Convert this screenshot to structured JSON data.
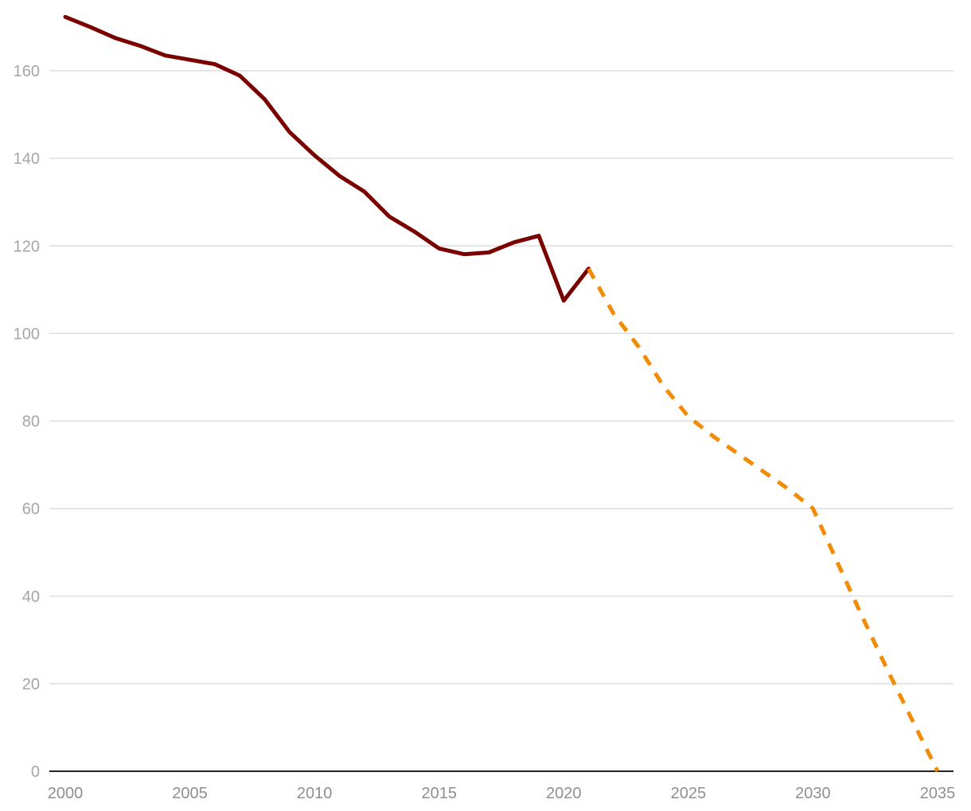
{
  "chart_data": {
    "type": "line",
    "title": "",
    "xlabel": "",
    "ylabel": "",
    "xlim": [
      2000,
      2035
    ],
    "ylim": [
      0,
      170
    ],
    "y_ticks": [
      0,
      20,
      40,
      60,
      80,
      100,
      120,
      140,
      160
    ],
    "x_ticks": [
      2000,
      2005,
      2010,
      2015,
      2020,
      2025,
      2030,
      2035
    ],
    "grid": "horizontal",
    "legend": "none",
    "series": [
      {
        "style": "solid",
        "color": "#7a0000",
        "x": [
          2000,
          2001,
          2002,
          2003,
          2004,
          2005,
          2006,
          2007,
          2008,
          2009,
          2010,
          2011,
          2012,
          2013,
          2014,
          2015,
          2016,
          2017,
          2018,
          2019,
          2020,
          2021
        ],
        "y": [
          172.3,
          170.0,
          167.5,
          165.7,
          163.5,
          162.5,
          161.5,
          158.9,
          153.5,
          146.0,
          140.7,
          136.0,
          132.4,
          126.7,
          123.3,
          119.4,
          118.1,
          118.5,
          120.8,
          122.3,
          107.5,
          114.8
        ]
      },
      {
        "style": "dashed",
        "color": "#f28c06",
        "x": [
          2021,
          2022,
          2023,
          2024,
          2025,
          2026,
          2027,
          2028,
          2029,
          2030,
          2031,
          2032,
          2033,
          2034,
          2035
        ],
        "y": [
          114.8,
          104.5,
          97.0,
          88.0,
          81.0,
          76.5,
          72.5,
          68.5,
          64.5,
          60.0,
          47.5,
          35.0,
          23.0,
          11.5,
          0.0
        ]
      }
    ]
  }
}
